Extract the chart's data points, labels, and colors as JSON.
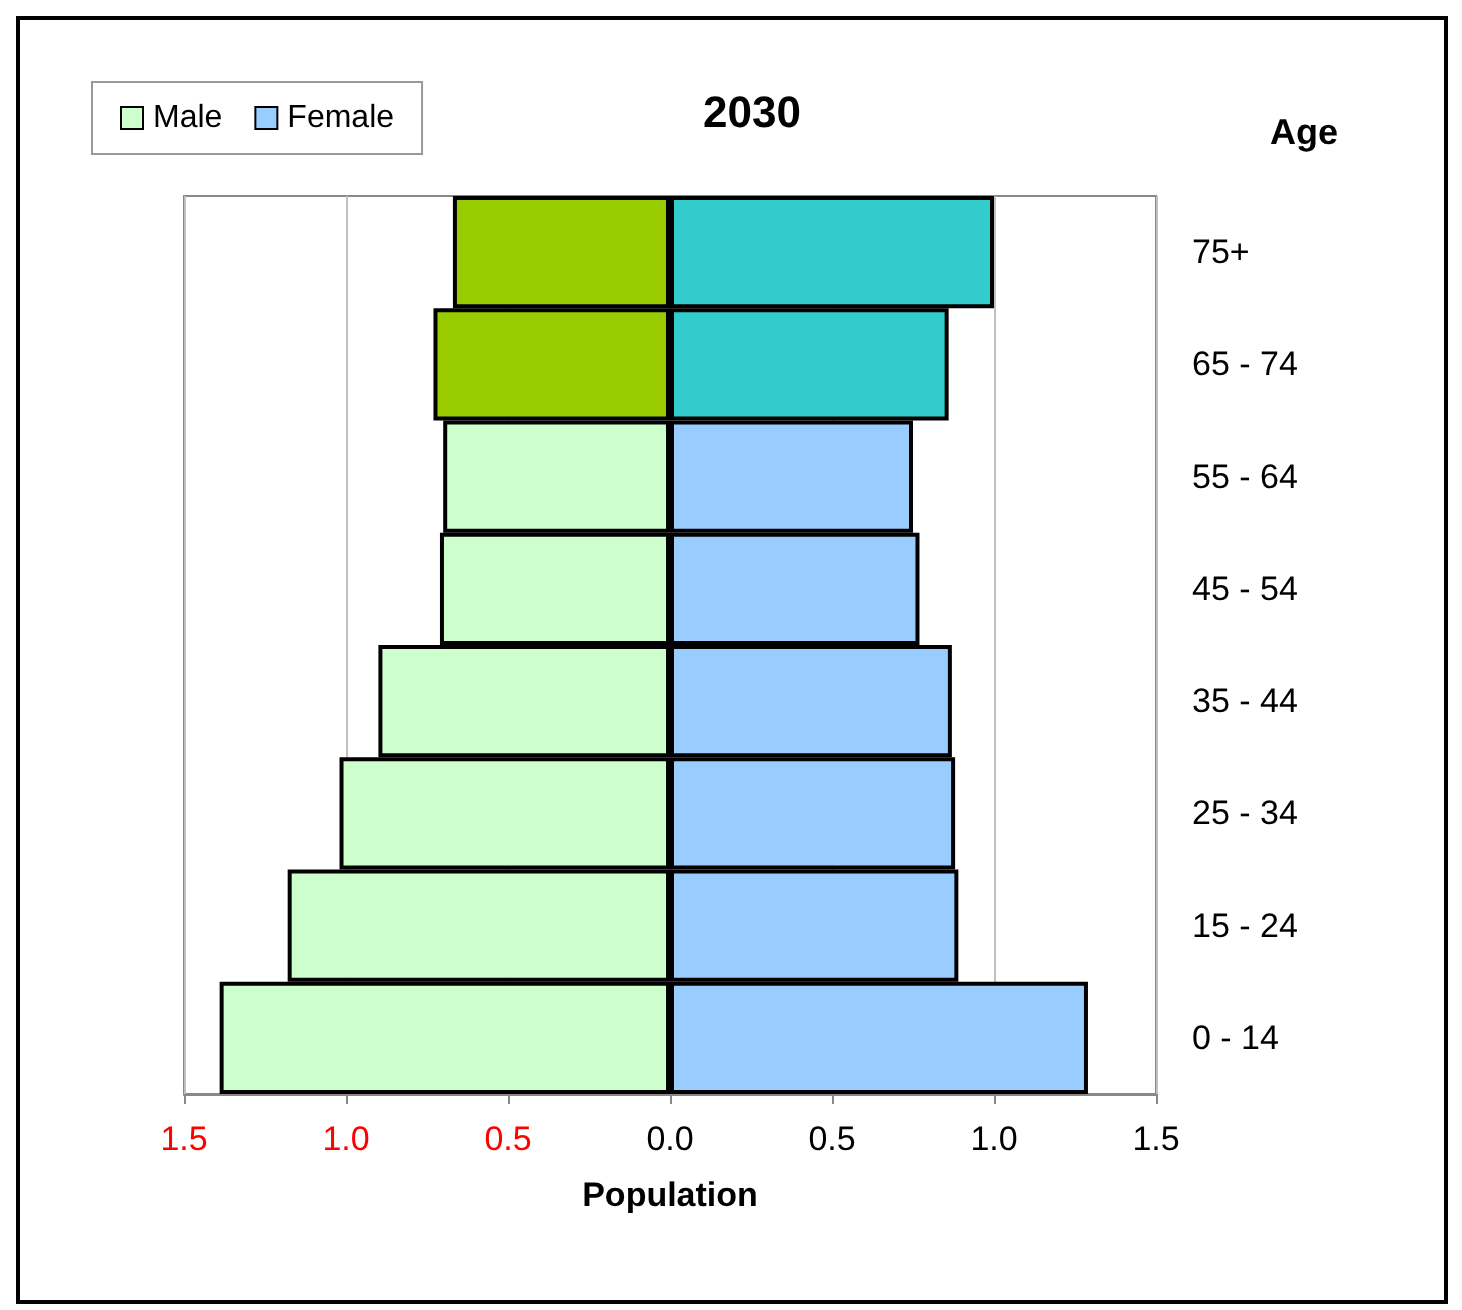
{
  "chart_data": {
    "type": "bar",
    "orientation": "horizontal",
    "stacked": true,
    "title": "2030",
    "xlabel": "Population",
    "ylabel": "Age",
    "categories": [
      "75+",
      "65 - 74",
      "55 - 64",
      "45 - 54",
      "35 - 44",
      "25 - 34",
      "15 - 24",
      "0 - 14"
    ],
    "series": [
      {
        "name": "Male",
        "color": "#ccffcc",
        "colors": [
          "#99cc00",
          "#99cc00",
          "#ccffcc",
          "#ccffcc",
          "#ccffcc",
          "#ccffcc",
          "#ccffcc",
          "#ccffcc"
        ],
        "values": [
          -0.67,
          -0.73,
          -0.7,
          -0.71,
          -0.9,
          -1.02,
          -1.18,
          -1.39
        ]
      },
      {
        "name": "Female",
        "color": "#99ccff",
        "colors": [
          "#33cccc",
          "#33cccc",
          "#99ccff",
          "#99ccff",
          "#99ccff",
          "#99ccff",
          "#99ccff",
          "#99ccff"
        ],
        "values": [
          1.0,
          0.86,
          0.75,
          0.77,
          0.87,
          0.88,
          0.89,
          1.29
        ]
      }
    ],
    "xlim": [
      -1.5,
      1.5
    ],
    "xticks": [
      {
        "value": -1.5,
        "label": "1.5"
      },
      {
        "value": -1.0,
        "label": "1.0"
      },
      {
        "value": -0.5,
        "label": "0.5"
      },
      {
        "value": 0,
        "label": "0.0"
      },
      0.5,
      {
        "value": 1.0,
        "label": "1.0"
      },
      1.5
    ],
    "grid": "x",
    "legend": "top left"
  }
}
